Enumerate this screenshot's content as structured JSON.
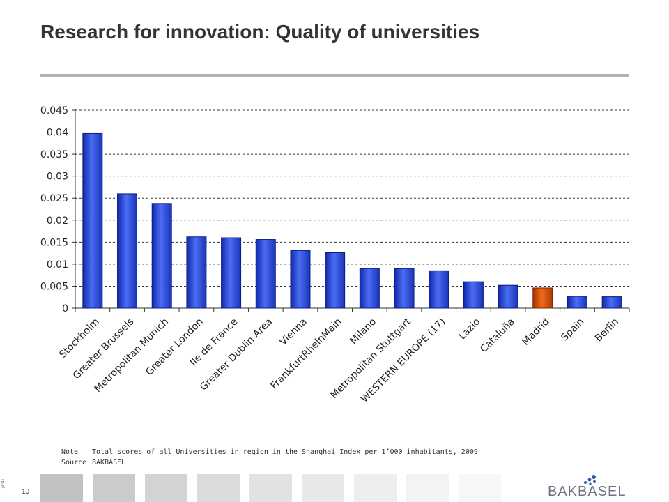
{
  "header": {
    "title": "Research for innovation: Quality of universities"
  },
  "chart_data": {
    "type": "bar",
    "categories": [
      "Stockholm",
      "Greater Brussels",
      "Metropolitan Munich",
      "Greater London",
      "Ile de France",
      "Greater Dublin Area",
      "Vienna",
      "FrankfurtRheinMain",
      "Milano",
      "Metropolitan Stuttgart",
      "WESTERN EUROPE (17)",
      "Lazio",
      "Cataluña",
      "Madrid",
      "Spain",
      "Berlin"
    ],
    "values": [
      0.0397,
      0.026,
      0.0238,
      0.0162,
      0.016,
      0.0156,
      0.0131,
      0.0126,
      0.009,
      0.009,
      0.0085,
      0.006,
      0.0052,
      0.0046,
      0.0027,
      0.0026
    ],
    "highlight": "Madrid",
    "ylim": [
      0,
      0.045
    ],
    "yticks": [
      "0",
      "0.005",
      "0.01",
      "0.015",
      "0.02",
      "0.025",
      "0.03",
      "0.035",
      "0.04",
      "0.045"
    ],
    "grid": true,
    "colors": {
      "bar": "#2a48d8",
      "highlight": "#d94a0a"
    }
  },
  "footnotes": {
    "note_label": "Note",
    "note_text": "Total scores of all Universities in region in the Shanghai Index per 1’000 inhabitants, 2009",
    "source_label": "Source",
    "source_text": "BAKBASEL"
  },
  "footer": {
    "page_number": "10",
    "page_id": "jd/411",
    "logo_text": "BAKBASEL",
    "tile_colors": [
      "#c2c2c2",
      "#cbcbcb",
      "#d3d3d3",
      "#dbdbdb",
      "#e2e2e2",
      "#e8e8e8",
      "#eeeeee",
      "#f3f3f3",
      "#f7f7f7"
    ]
  }
}
